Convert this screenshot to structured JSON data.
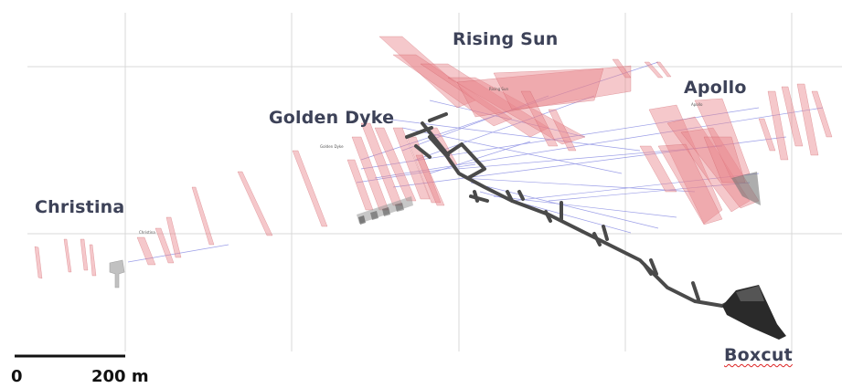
{
  "zones": {
    "rising_sun": "Rising Sun",
    "golden_dyke": "Golden Dyke",
    "apollo": "Apollo",
    "christina": "Christina",
    "boxcut": "Boxcut"
  },
  "small_labels": {
    "rising_sun": "Rising Sun",
    "golden_dyke": "Golden Dyke",
    "apollo": "Apollo",
    "christina": "Christina"
  },
  "scale_bar": {
    "start": "0",
    "end": "200 m"
  },
  "colors": {
    "grid": "#d9d9d9",
    "orebody": "#e8858c",
    "orebody_edge": "#c9555e",
    "drillhole": "#7b7fe0",
    "decline": "#4a4a4a",
    "label": "#3d4258"
  },
  "icons": {
    "decline": "underground-decline",
    "orebody": "orebody-lens",
    "drillhole": "drill-trace"
  }
}
